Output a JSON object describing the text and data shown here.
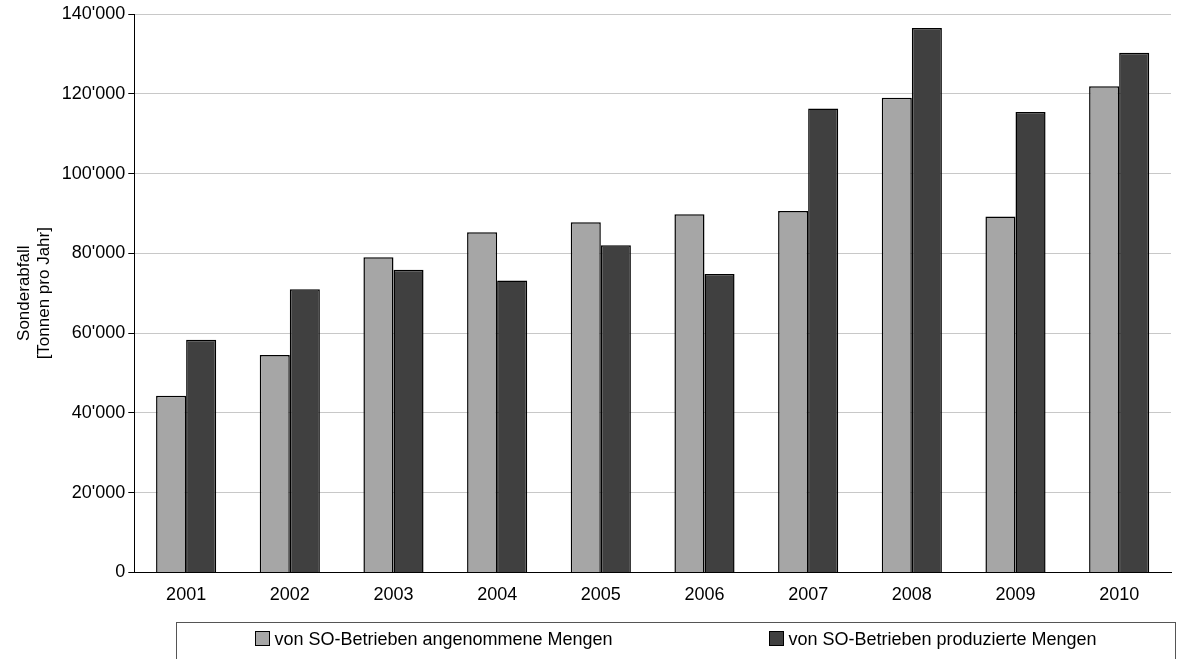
{
  "chart_data": {
    "type": "bar",
    "ylabel": "Sonderabfall\n[Tonnen pro Jahr]",
    "categories": [
      "2001",
      "2002",
      "2003",
      "2004",
      "2005",
      "2006",
      "2007",
      "2008",
      "2009",
      "2010"
    ],
    "series": [
      {
        "name": "von SO-Betrieben angenommene Mengen",
        "color": "#a6a6a6",
        "values": [
          44300,
          54500,
          79000,
          85300,
          87800,
          89800,
          90600,
          119000,
          89200,
          121900
        ]
      },
      {
        "name": "von SO-Betrieben produzierte Mengen",
        "color": "#404040",
        "values": [
          58300,
          71000,
          75900,
          73200,
          82000,
          74800,
          116300,
          136500,
          115400,
          130300
        ]
      }
    ],
    "ylim": [
      0,
      140000
    ],
    "yticks": [
      0,
      {
        "value": 20000,
        "label": "20'000"
      },
      {
        "value": 40000,
        "label": "40'000"
      },
      {
        "value": 60000,
        "label": "60'000"
      },
      {
        "value": 80000,
        "label": "80'000"
      },
      {
        "value": 100000,
        "label": "100'000"
      },
      {
        "value": 120000,
        "label": "120'000"
      },
      {
        "value": 140000,
        "label": "140'000"
      }
    ],
    "grid": "y",
    "legend": "bottom"
  }
}
